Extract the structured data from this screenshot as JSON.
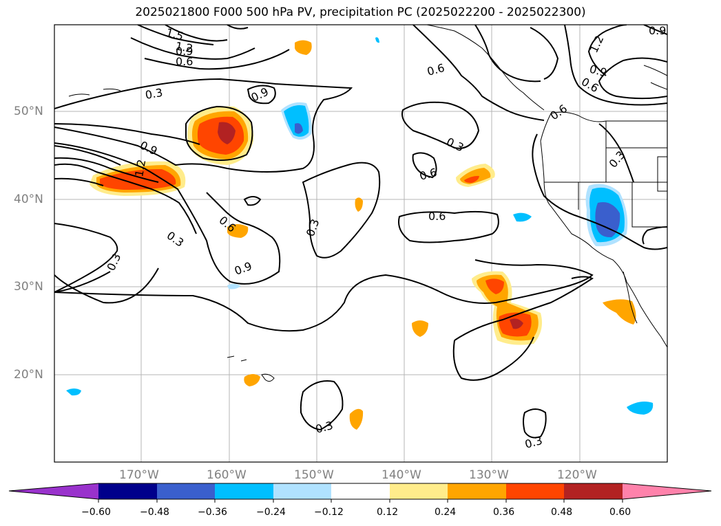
{
  "title": "2025021800 F000 500 hPa PV, precipitation PC (2025022200 - 2025022300)",
  "lat_ticks": [
    "50°N",
    "40°N",
    "30°N",
    "20°N"
  ],
  "lon_ticks": [
    "170°W",
    "160°W",
    "150°W",
    "140°W",
    "130°W",
    "120°W"
  ],
  "contour_labels": [
    "1.5",
    "1.2",
    "0.9",
    "0.6",
    "0.3",
    "0.9",
    "0.9",
    "1.2",
    "0.3",
    "0.6",
    "0.3",
    "0.9",
    "0.6",
    "0.3",
    "0.6",
    "0.6",
    "0.3",
    "1.2",
    "0.9",
    "0.6",
    "0.6",
    "0.3",
    "0.3",
    "0.3",
    "0.9"
  ],
  "colorbar": {
    "tick_labels": [
      "−0.60",
      "−0.48",
      "−0.36",
      "−0.24",
      "−0.12",
      "0.12",
      "0.24",
      "0.36",
      "0.48",
      "0.60"
    ],
    "colors": [
      "#9932cc",
      "#00008b",
      "#3a5fcd",
      "#00bfff",
      "#b0e2ff",
      "#ffffff",
      "#ffec8b",
      "#ffa500",
      "#ff4500",
      "#b22222",
      "#ff82ab"
    ]
  }
}
